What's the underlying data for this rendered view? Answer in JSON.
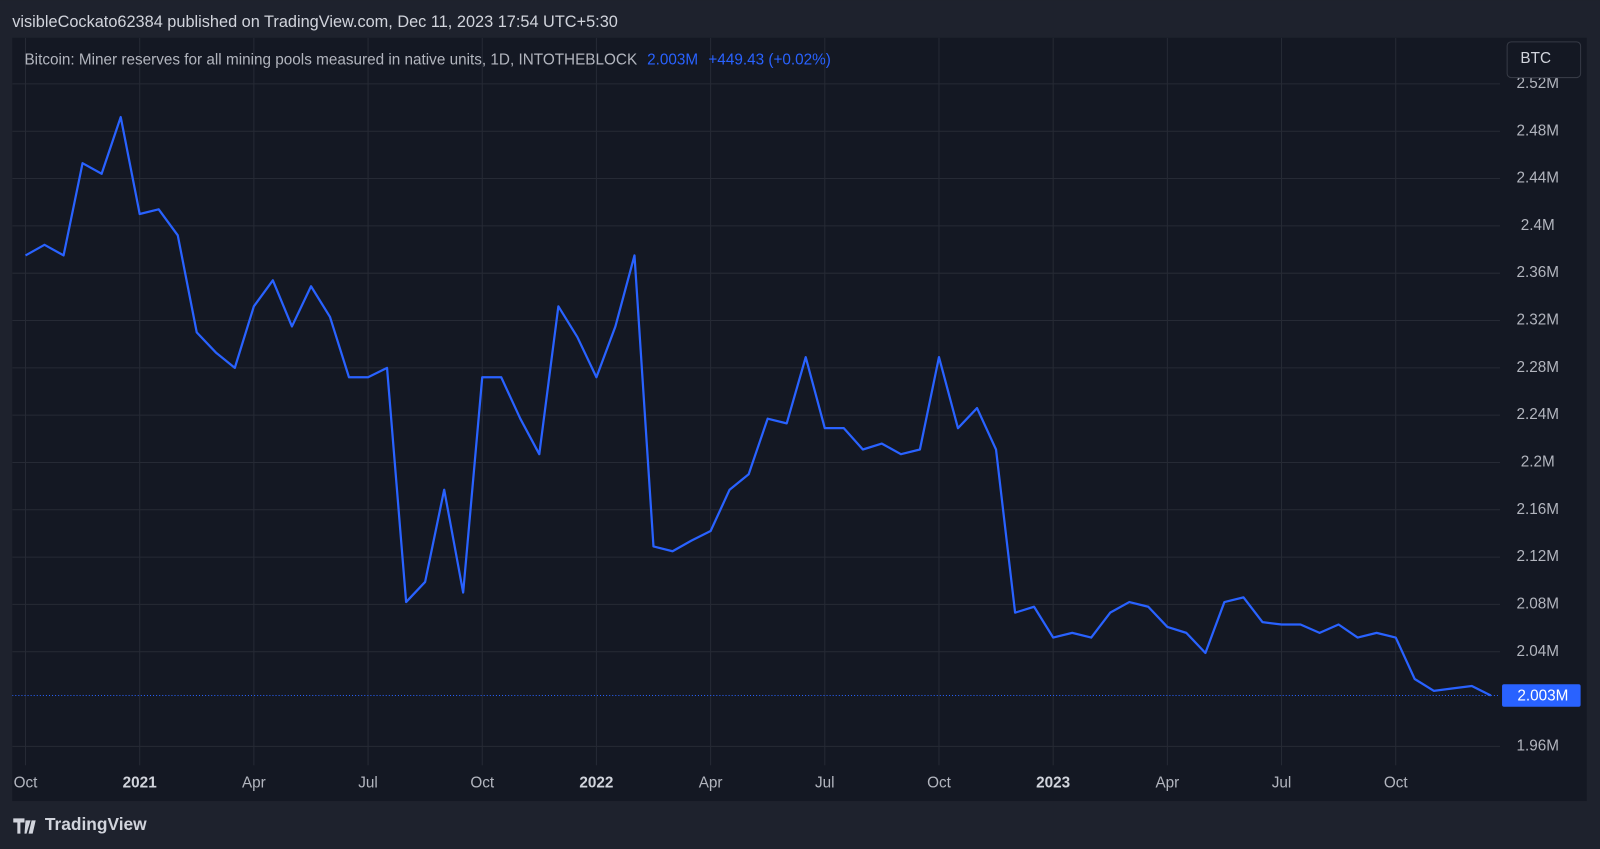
{
  "header": {
    "published": "visibleCockato62384 published on TradingView.com, Dec 11, 2023 17:54 UTC+5:30"
  },
  "footer": {
    "brand": "TradingView"
  },
  "chart_data": {
    "type": "line",
    "legend_value": "2.003M",
    "legend_change": "+449.43 (+0.02%)",
    "unit_button": "BTC",
    "categories": [
      "Oct",
      null,
      null,
      null,
      null,
      null,
      "2021",
      null,
      null,
      null,
      null,
      null,
      "Apr",
      null,
      null,
      null,
      null,
      null,
      "Jul",
      null,
      null,
      null,
      null,
      null,
      "Oct",
      null,
      null,
      null,
      null,
      null,
      "2022",
      null,
      null,
      null,
      null,
      null,
      "Apr",
      null,
      null,
      null,
      null,
      null,
      "Jul",
      null,
      null,
      null,
      null,
      null,
      "Oct",
      null,
      null,
      null,
      null,
      null,
      "2023",
      null,
      null,
      null,
      null,
      null,
      "Apr",
      null,
      null,
      null,
      null,
      null,
      "Jul",
      null,
      null,
      null,
      null,
      null,
      "Oct",
      null,
      null,
      null,
      null,
      null
    ],
    "series": [
      {
        "name": "Bitcoin: Miner reserves for all mining pools measured in native units, 1D, INTOTHEBLOCK",
        "color": "#2962ff",
        "values": [
          2375000,
          2384000,
          2375000,
          2453000,
          2444000,
          2492000,
          2410000,
          2414000,
          2392000,
          2310000,
          2293000,
          2280000,
          2332000,
          2354000,
          2315000,
          2349000,
          2323000,
          2272000,
          2272000,
          2280000,
          2082000,
          2099000,
          2177000,
          2090000,
          2272000,
          2272000,
          2237000,
          2207000,
          2332000,
          2306000,
          2272000,
          2315000,
          2375000,
          2129000,
          2125000,
          2134000,
          2142000,
          2177000,
          2190000,
          2237000,
          2233000,
          2289000,
          2229000,
          2229000,
          2211000,
          2216000,
          2207000,
          2211000,
          2289000,
          2229000,
          2246000,
          2211000,
          2073000,
          2078000,
          2052000,
          2056000,
          2052000,
          2073000,
          2082000,
          2078000,
          2061000,
          2056000,
          2039000,
          2082000,
          2086000,
          2065000,
          2063000,
          2063000,
          2056000,
          2063000,
          2052000,
          2056000,
          2052000,
          2017000,
          2007000,
          2009000,
          2011000,
          2003000
        ]
      }
    ],
    "ylim": [
      1944000,
      2559000
    ],
    "yticks": [
      {
        "value": 1960000,
        "label": "1.96M"
      },
      {
        "value": 2040000,
        "label": "2.04M"
      },
      {
        "value": 2080000,
        "label": "2.08M"
      },
      {
        "value": 2120000,
        "label": "2.12M"
      },
      {
        "value": 2160000,
        "label": "2.16M"
      },
      {
        "value": 2200000,
        "label": "2.2M"
      },
      {
        "value": 2240000,
        "label": "2.24M"
      },
      {
        "value": 2280000,
        "label": "2.28M"
      },
      {
        "value": 2320000,
        "label": "2.32M"
      },
      {
        "value": 2360000,
        "label": "2.36M"
      },
      {
        "value": 2400000,
        "label": "2.4M"
      },
      {
        "value": 2440000,
        "label": "2.44M"
      },
      {
        "value": 2480000,
        "label": "2.48M"
      },
      {
        "value": 2520000,
        "label": "2.52M"
      }
    ],
    "grid": true
  }
}
